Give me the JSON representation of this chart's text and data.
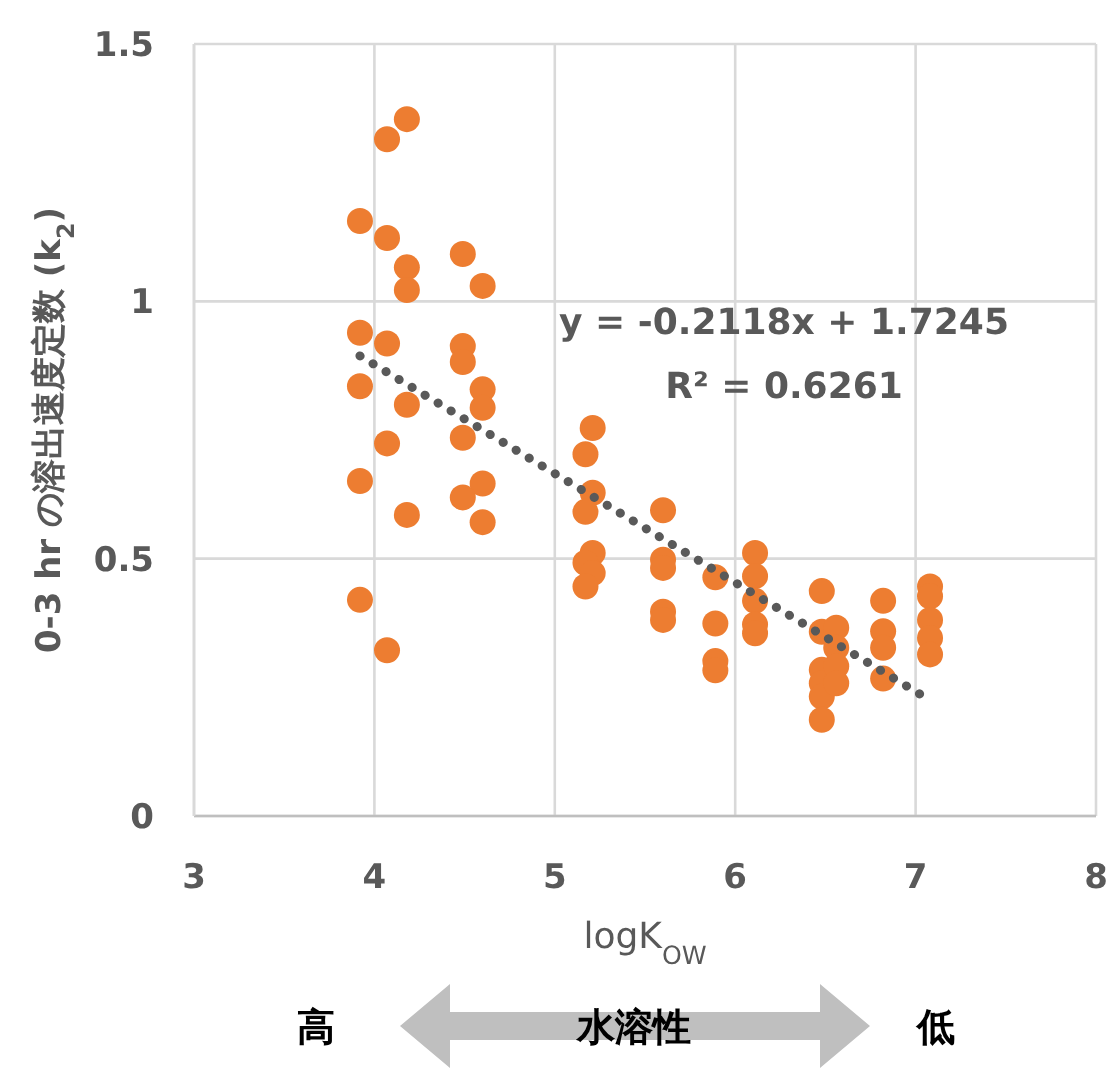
{
  "chart_data": {
    "type": "scatter",
    "xlabel": "logK$_{OW}$",
    "ylabel": "0-3 hr の溶出速度定数 (k$_{2}$)",
    "xlim": [
      3,
      8
    ],
    "xticks": [
      3,
      4,
      5,
      6,
      7,
      8
    ],
    "ylim": [
      0,
      1.5
    ],
    "yticks": [
      0,
      0.5,
      1,
      1.5
    ],
    "grid": true,
    "marker": "circle",
    "series": [
      {
        "color": "#ed7d31",
        "x": [
          4.18,
          4.07,
          3.92,
          4.07,
          4.18,
          4.18,
          4.49,
          4.6,
          3.92,
          4.07,
          4.49,
          4.49,
          3.92,
          4.6,
          4.6,
          4.18,
          4.07,
          4.49,
          3.92,
          4.6,
          4.49,
          4.18,
          4.6,
          3.92,
          4.07,
          5.21,
          5.17,
          5.21,
          5.17,
          5.21,
          5.17,
          5.21,
          5.17,
          5.6,
          5.6,
          5.6,
          5.6,
          5.6,
          5.89,
          5.89,
          5.89,
          5.89,
          6.11,
          6.11,
          6.11,
          6.11,
          6.11,
          6.48,
          6.48,
          6.48,
          6.48,
          6.48,
          6.48,
          6.56,
          6.56,
          6.56,
          6.56,
          6.82,
          6.82,
          6.82,
          6.82,
          7.08,
          7.08,
          7.08,
          7.08,
          7.08
        ],
        "values": [
          1.354,
          1.315,
          1.156,
          1.123,
          1.066,
          1.022,
          1.092,
          1.03,
          0.939,
          0.918,
          0.913,
          0.882,
          0.835,
          0.829,
          0.793,
          0.799,
          0.724,
          0.735,
          0.651,
          0.646,
          0.619,
          0.585,
          0.571,
          0.42,
          0.322,
          0.754,
          0.703,
          0.628,
          0.591,
          0.511,
          0.492,
          0.472,
          0.446,
          0.594,
          0.498,
          0.482,
          0.397,
          0.381,
          0.464,
          0.374,
          0.301,
          0.283,
          0.511,
          0.466,
          0.418,
          0.372,
          0.355,
          0.437,
          0.358,
          0.284,
          0.258,
          0.232,
          0.187,
          0.366,
          0.327,
          0.291,
          0.258,
          0.418,
          0.359,
          0.327,
          0.267,
          0.446,
          0.427,
          0.381,
          0.346,
          0.314
        ]
      },
      {
        "type": "line",
        "color": "#595959",
        "line_style": "dotted",
        "marker": "none",
        "x": [
          3.92,
          7.08
        ],
        "values": [
          0.894,
          0.225
        ]
      }
    ],
    "annotations": [
      "y = -0.2118x + 1.7245",
      "R² = 0.6261",
      "高",
      "水溶性",
      "低"
    ]
  }
}
